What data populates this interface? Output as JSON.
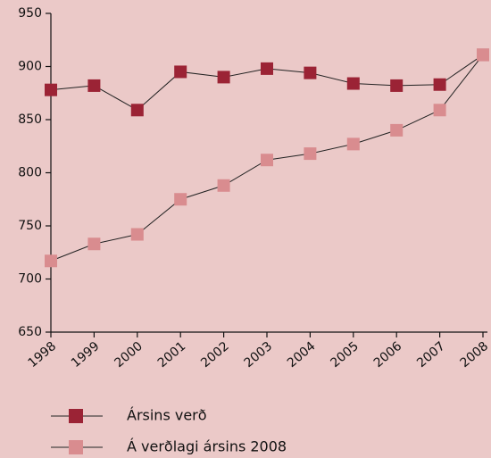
{
  "chart_data": {
    "type": "line",
    "categories": [
      "1998",
      "1999",
      "2000",
      "2001",
      "2002",
      "2003",
      "2004",
      "2005",
      "2006",
      "2007",
      "2008"
    ],
    "series": [
      {
        "name": "Ársins verð",
        "color": "#9b2335",
        "values": [
          878,
          882,
          859,
          895,
          890,
          898,
          894,
          884,
          882,
          883,
          911
        ]
      },
      {
        "name": "Á verðlagi ársins 2008",
        "color": "#d98c8f",
        "values": [
          717,
          733,
          742,
          775,
          788,
          812,
          818,
          827,
          840,
          859,
          911
        ]
      }
    ],
    "ylim": [
      650,
      950
    ],
    "yticks": [
      650,
      700,
      750,
      800,
      850,
      900,
      950
    ]
  }
}
